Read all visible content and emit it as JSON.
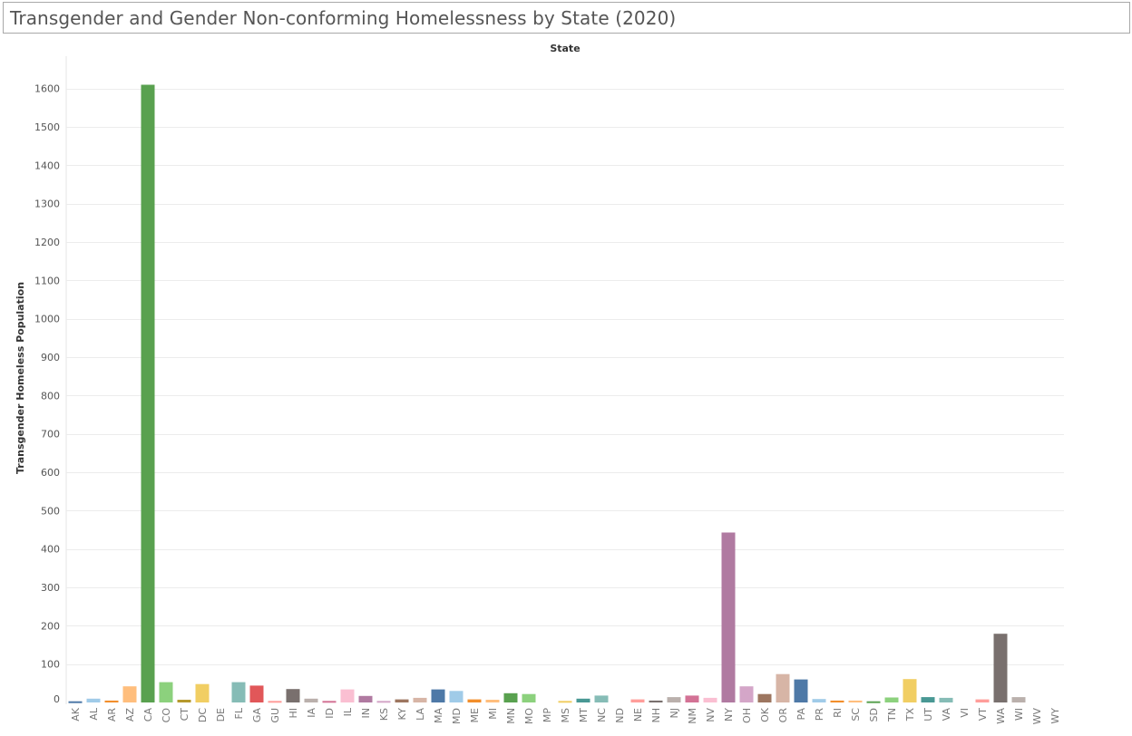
{
  "chart_data": {
    "type": "bar",
    "title": "Transgender and Gender Non-conforming Homelessness by State (2020)",
    "column_header": "State",
    "ylabel": "Transgender Homeless Population",
    "ylim": [
      -15,
      1640
    ],
    "yticks": [
      0,
      100,
      200,
      300,
      400,
      500,
      600,
      700,
      800,
      900,
      1000,
      1100,
      1200,
      1300,
      1400,
      1500,
      1600
    ],
    "grid": true,
    "categories": [
      "AK",
      "AL",
      "AR",
      "AZ",
      "CA",
      "CO",
      "CT",
      "DC",
      "DE",
      "FL",
      "GA",
      "GU",
      "HI",
      "IA",
      "ID",
      "IL",
      "IN",
      "KS",
      "KY",
      "LA",
      "MA",
      "MD",
      "ME",
      "MI",
      "MN",
      "MO",
      "MP",
      "MS",
      "MT",
      "NC",
      "ND",
      "NE",
      "NH",
      "NJ",
      "NM",
      "NV",
      "NY",
      "OH",
      "OK",
      "OR",
      "PA",
      "PR",
      "RI",
      "SC",
      "SD",
      "TN",
      "TX",
      "UT",
      "VA",
      "VI",
      "VT",
      "WA",
      "WI",
      "WV",
      "WY"
    ],
    "values": [
      3,
      10,
      5,
      42,
      1610,
      53,
      7,
      48,
      0,
      53,
      44,
      4,
      35,
      10,
      4,
      34,
      17,
      4,
      8,
      12,
      34,
      30,
      8,
      7,
      24,
      22,
      0,
      4,
      10,
      18,
      0,
      8,
      5,
      14,
      18,
      12,
      443,
      42,
      22,
      74,
      60,
      9,
      5,
      5,
      3,
      13,
      61,
      14,
      12,
      0,
      8,
      179,
      14,
      0,
      0
    ],
    "colors": [
      "#4e79a7",
      "#a0cbe8",
      "#f28e2b",
      "#ffbe7d",
      "#59a14f",
      "#8cd17d",
      "#b6992d",
      "#f1ce63",
      "#499894",
      "#86bcb6",
      "#e15759",
      "#ff9d9a",
      "#79706e",
      "#bab0ac",
      "#d37295",
      "#fabfd2",
      "#b07aa1",
      "#d4a6c8",
      "#9d7660",
      "#d7b5a6",
      "#4e79a7",
      "#a0cbe8",
      "#f28e2b",
      "#ffbe7d",
      "#59a14f",
      "#8cd17d",
      "#b6992d",
      "#f1ce63",
      "#499894",
      "#86bcb6",
      "#e15759",
      "#ff9d9a",
      "#79706e",
      "#bab0ac",
      "#d37295",
      "#fabfd2",
      "#b07aa1",
      "#d4a6c8",
      "#9d7660",
      "#d7b5a6",
      "#4e79a7",
      "#a0cbe8",
      "#f28e2b",
      "#ffbe7d",
      "#59a14f",
      "#8cd17d",
      "#f1ce63",
      "#499894",
      "#86bcb6",
      "#e15759",
      "#ff9d9a",
      "#79706e",
      "#bab0ac",
      "#d37295",
      "#fabfd2"
    ]
  }
}
